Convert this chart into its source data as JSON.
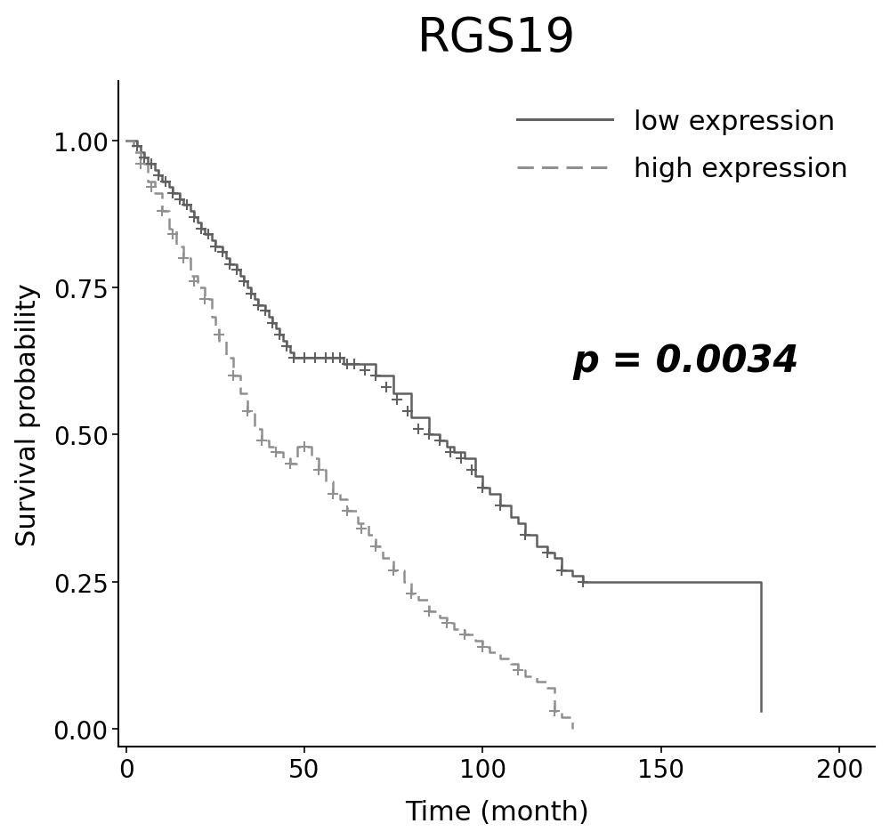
{
  "title": "RGS19",
  "xlabel": "Time (month)",
  "ylabel": "Survival probability",
  "p_value_text": "p = 0.0034",
  "xlim": [
    -2,
    210
  ],
  "ylim": [
    -0.03,
    1.1
  ],
  "xticks": [
    0,
    50,
    100,
    150,
    200
  ],
  "yticks": [
    0.0,
    0.25,
    0.5,
    0.75,
    1.0
  ],
  "background_color": "#ffffff",
  "line_color_low": "#606060",
  "line_color_high": "#909090",
  "title_fontsize": 38,
  "label_fontsize": 22,
  "tick_fontsize": 20,
  "legend_fontsize": 22,
  "pvalue_fontsize": 30,
  "low_expression": {
    "times": [
      0,
      1,
      2,
      3,
      4,
      5,
      6,
      7,
      8,
      9,
      10,
      11,
      12,
      13,
      14,
      15,
      16,
      17,
      18,
      19,
      20,
      21,
      22,
      23,
      24,
      25,
      26,
      27,
      28,
      29,
      30,
      31,
      32,
      33,
      34,
      35,
      36,
      37,
      38,
      39,
      40,
      41,
      42,
      43,
      44,
      45,
      46,
      47,
      48,
      49,
      50,
      55,
      56,
      57,
      58,
      59,
      60,
      61,
      62,
      63,
      64,
      65,
      70,
      75,
      80,
      85,
      88,
      90,
      92,
      95,
      98,
      100,
      102,
      105,
      108,
      110,
      112,
      115,
      118,
      120,
      122,
      125,
      128,
      130,
      175,
      178
    ],
    "surv": [
      1.0,
      1.0,
      1.0,
      0.99,
      0.98,
      0.97,
      0.96,
      0.96,
      0.95,
      0.94,
      0.93,
      0.93,
      0.92,
      0.91,
      0.91,
      0.9,
      0.89,
      0.89,
      0.88,
      0.87,
      0.86,
      0.85,
      0.84,
      0.84,
      0.83,
      0.82,
      0.82,
      0.81,
      0.8,
      0.79,
      0.79,
      0.78,
      0.77,
      0.76,
      0.75,
      0.74,
      0.73,
      0.72,
      0.72,
      0.71,
      0.7,
      0.69,
      0.68,
      0.67,
      0.66,
      0.65,
      0.64,
      0.63,
      0.63,
      0.63,
      0.63,
      0.63,
      0.63,
      0.63,
      0.63,
      0.63,
      0.63,
      0.62,
      0.62,
      0.62,
      0.62,
      0.62,
      0.6,
      0.57,
      0.53,
      0.5,
      0.49,
      0.48,
      0.47,
      0.46,
      0.43,
      0.41,
      0.4,
      0.38,
      0.36,
      0.35,
      0.33,
      0.31,
      0.3,
      0.29,
      0.27,
      0.26,
      0.25,
      0.25,
      0.25,
      0.03
    ],
    "censored_times": [
      3,
      5,
      7,
      9,
      11,
      13,
      15,
      17,
      19,
      21,
      23,
      25,
      27,
      29,
      31,
      33,
      35,
      37,
      39,
      41,
      43,
      45,
      47,
      50,
      53,
      56,
      58,
      60,
      62,
      64,
      67,
      70,
      73,
      76,
      79,
      82,
      85,
      88,
      91,
      94,
      97,
      100,
      105,
      112,
      118,
      122,
      128
    ],
    "censored_surv": [
      0.99,
      0.97,
      0.96,
      0.94,
      0.93,
      0.91,
      0.9,
      0.89,
      0.87,
      0.85,
      0.84,
      0.82,
      0.81,
      0.79,
      0.78,
      0.76,
      0.74,
      0.72,
      0.71,
      0.69,
      0.67,
      0.65,
      0.63,
      0.63,
      0.63,
      0.63,
      0.63,
      0.63,
      0.62,
      0.62,
      0.61,
      0.6,
      0.58,
      0.56,
      0.54,
      0.51,
      0.5,
      0.49,
      0.47,
      0.46,
      0.44,
      0.41,
      0.38,
      0.33,
      0.3,
      0.27,
      0.25
    ]
  },
  "high_expression": {
    "times": [
      0,
      2,
      4,
      6,
      8,
      10,
      12,
      14,
      16,
      18,
      20,
      22,
      24,
      25,
      26,
      28,
      30,
      32,
      34,
      36,
      38,
      40,
      42,
      44,
      46,
      48,
      50,
      52,
      54,
      56,
      58,
      60,
      62,
      65,
      68,
      70,
      72,
      75,
      78,
      80,
      82,
      85,
      88,
      90,
      92,
      95,
      98,
      100,
      102,
      105,
      108,
      110,
      112,
      115,
      118,
      120,
      122,
      125
    ],
    "surv": [
      1.0,
      0.98,
      0.96,
      0.93,
      0.91,
      0.88,
      0.85,
      0.82,
      0.8,
      0.77,
      0.75,
      0.73,
      0.7,
      0.68,
      0.66,
      0.63,
      0.6,
      0.57,
      0.54,
      0.51,
      0.49,
      0.48,
      0.47,
      0.46,
      0.45,
      0.48,
      0.48,
      0.46,
      0.44,
      0.42,
      0.4,
      0.39,
      0.37,
      0.35,
      0.33,
      0.31,
      0.29,
      0.27,
      0.25,
      0.23,
      0.22,
      0.2,
      0.19,
      0.18,
      0.17,
      0.16,
      0.15,
      0.14,
      0.13,
      0.12,
      0.11,
      0.1,
      0.09,
      0.08,
      0.07,
      0.03,
      0.02,
      0.0
    ],
    "censored_times": [
      4,
      7,
      10,
      13,
      16,
      19,
      22,
      26,
      30,
      34,
      38,
      42,
      46,
      50,
      54,
      58,
      62,
      66,
      70,
      75,
      80,
      85,
      90,
      95,
      100,
      110,
      120
    ],
    "censored_surv": [
      0.96,
      0.92,
      0.88,
      0.84,
      0.8,
      0.76,
      0.73,
      0.67,
      0.6,
      0.54,
      0.49,
      0.47,
      0.45,
      0.48,
      0.44,
      0.4,
      0.37,
      0.34,
      0.31,
      0.27,
      0.23,
      0.2,
      0.18,
      0.16,
      0.14,
      0.1,
      0.03
    ]
  }
}
